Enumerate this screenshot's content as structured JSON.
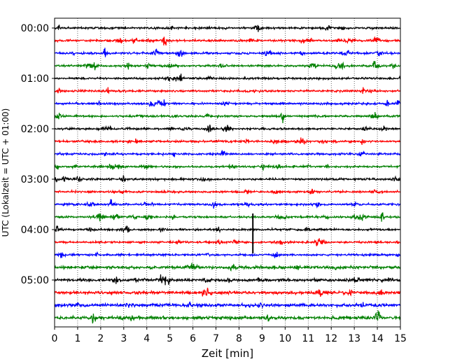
{
  "chart_data": {
    "type": "line",
    "title": "",
    "xlabel": "Zeit  [min]",
    "ylabel": "UTC (Lokalzeit = UTC + 01:00)",
    "xlim": [
      0,
      15
    ],
    "x_ticks": [
      0,
      1,
      2,
      3,
      4,
      5,
      6,
      7,
      8,
      9,
      10,
      11,
      12,
      13,
      14,
      15
    ],
    "y_tick_labels": [
      "00:00",
      "01:00",
      "02:00",
      "03:00",
      "04:00",
      "05:00"
    ],
    "trace_interval_minutes": 15,
    "trace_count": 24,
    "grid": "vertical dotted lines at each minute",
    "legend": "none",
    "trace_colors": [
      "#000000",
      "#ff0000",
      "#0000ff",
      "#008000"
    ],
    "notable_event": {
      "minute": 8.6,
      "near_trace": "04:00"
    }
  }
}
